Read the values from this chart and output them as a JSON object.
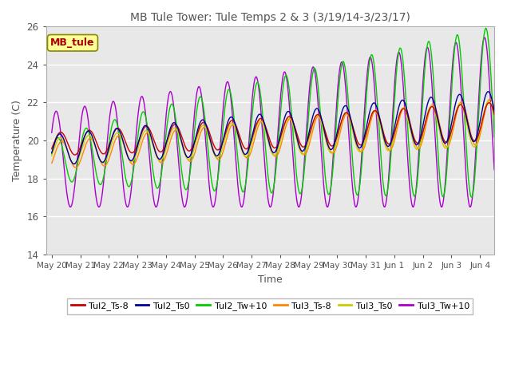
{
  "title": "MB Tule Tower: Tule Temps 2 & 3 (3/19/14-3/23/17)",
  "xlabel": "Time",
  "ylabel": "Temperature (C)",
  "ylim": [
    14,
    26
  ],
  "tick_labels": [
    "May 20",
    "May 21",
    "May 22",
    "May 23",
    "May 24",
    "May 25",
    "May 26",
    "May 27",
    "May 28",
    "May 29",
    "May 30",
    "May 31",
    "Jun 1",
    "Jun 2",
    "Jun 3",
    "Jun 4"
  ],
  "legend_label": "MB_tule",
  "series_labels": [
    "Tul2_Ts-8",
    "Tul2_Ts0",
    "Tul2_Tw+10",
    "Tul3_Ts-8",
    "Tul3_Ts0",
    "Tul3_Tw+10"
  ],
  "series_colors": [
    "#cc0000",
    "#000099",
    "#00cc00",
    "#ff8800",
    "#cccc00",
    "#aa00cc"
  ],
  "linewidth": 1.0,
  "title_fontsize": 10,
  "axis_label_fontsize": 9,
  "tick_fontsize": 7.5,
  "legend_fontsize": 8
}
